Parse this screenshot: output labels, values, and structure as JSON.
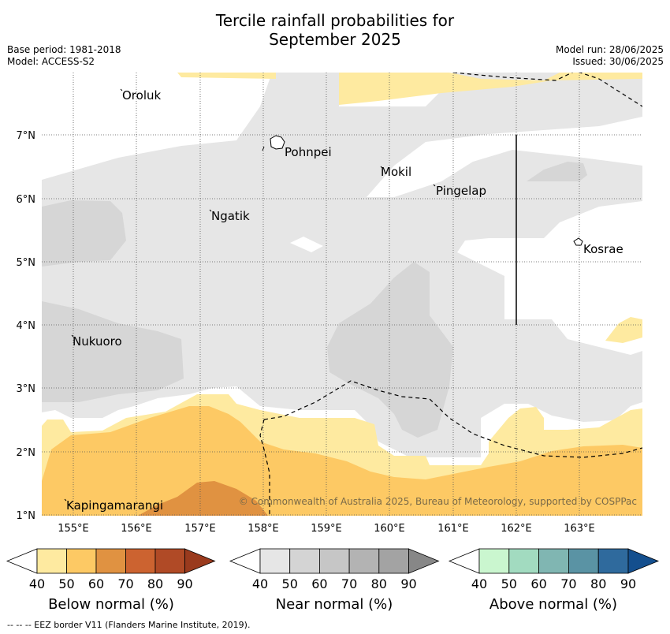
{
  "header": {
    "title_line1": "Tercile rainfall probabilities for",
    "title_line2": "September 2025",
    "base_period": "Base period: 1981-2018",
    "model": "Model: ACCESS-S2",
    "model_run": "Model run: 28/06/2025",
    "issued": "Issued: 30/06/2025"
  },
  "map": {
    "lat_ticks": [
      "7°N",
      "6°N",
      "5°N",
      "4°N",
      "3°N",
      "2°N",
      "1°N"
    ],
    "lon_ticks": [
      "155°E",
      "156°E",
      "157°E",
      "158°E",
      "159°E",
      "160°E",
      "161°E",
      "162°E",
      "163°E"
    ],
    "places": [
      {
        "name": "Oroluk"
      },
      {
        "name": "Pohnpei"
      },
      {
        "name": "Mokil"
      },
      {
        "name": "Pingelap"
      },
      {
        "name": "Ngatik"
      },
      {
        "name": "Kosrae"
      },
      {
        "name": "Nukuoro"
      },
      {
        "name": "Kapingamarangi"
      }
    ],
    "copyright": "© Commonwealth of Australia 2025, Bureau of Meteorology, supported by COSPPac"
  },
  "legend": {
    "below": {
      "label": "Below normal (%)",
      "colors": [
        "#ffffff",
        "#feeaa0",
        "#fdc964",
        "#e09241",
        "#cc6330",
        "#b04a26",
        "#9a3a1d"
      ],
      "ticks": [
        "40",
        "50",
        "60",
        "70",
        "80",
        "90"
      ]
    },
    "near": {
      "label": "Near normal (%)",
      "colors": [
        "#ffffff",
        "#e6e6e6",
        "#d4d4d4",
        "#c6c6c6",
        "#b3b3b3",
        "#a3a3a3",
        "#878787"
      ],
      "ticks": [
        "40",
        "50",
        "60",
        "70",
        "80",
        "90"
      ]
    },
    "above": {
      "label": "Above normal (%)",
      "colors": [
        "#ffffff",
        "#caf6cf",
        "#a2dbc0",
        "#80b6b2",
        "#5a93a4",
        "#2f6a9d",
        "#144f8e"
      ],
      "ticks": [
        "40",
        "50",
        "60",
        "70",
        "80",
        "90"
      ]
    }
  },
  "footer": {
    "eez_note": "--  --  -- EEZ border V11 (Flanders Marine Institute, 2019)."
  }
}
